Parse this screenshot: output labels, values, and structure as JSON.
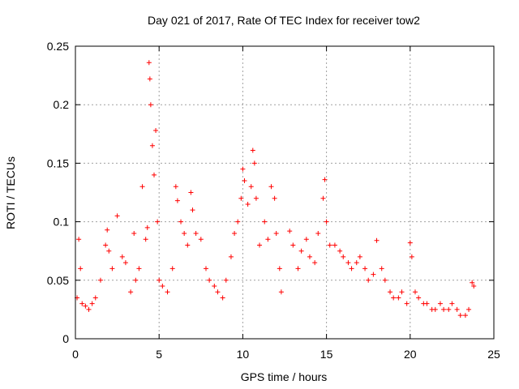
{
  "chart_data": {
    "type": "scatter",
    "title": "Day 021 of 2017, Rate Of TEC Index for receiver tow2",
    "xlabel": "GPS time / hours",
    "ylabel": "ROTI / TECUs",
    "xlim": [
      0,
      25
    ],
    "ylim": [
      0,
      0.25
    ],
    "xticks": [
      0,
      5,
      10,
      15,
      20,
      25
    ],
    "yticks": [
      0,
      0.05,
      0.1,
      0.15,
      0.2,
      0.25
    ],
    "xtick_labels": [
      "0",
      "5",
      "10",
      "15",
      "20",
      "25"
    ],
    "ytick_labels": [
      "0",
      "0.05",
      "0.1",
      "0.15",
      "0.2",
      "0.25"
    ],
    "grid": true,
    "marker": "plus",
    "color": "#ff0000",
    "x": [
      0.1,
      0.2,
      0.3,
      0.4,
      0.6,
      0.8,
      1.0,
      1.2,
      1.5,
      1.8,
      1.9,
      2.0,
      2.2,
      2.5,
      2.8,
      3.0,
      3.3,
      3.5,
      3.6,
      3.8,
      4.0,
      4.2,
      4.3,
      4.4,
      4.45,
      4.5,
      4.6,
      4.7,
      4.8,
      4.9,
      5.0,
      5.2,
      5.5,
      5.8,
      6.0,
      6.1,
      6.3,
      6.5,
      6.7,
      6.9,
      7.0,
      7.2,
      7.5,
      7.8,
      8.0,
      8.3,
      8.5,
      8.8,
      9.0,
      9.3,
      9.5,
      9.7,
      9.9,
      10.0,
      10.1,
      10.3,
      10.5,
      10.6,
      10.7,
      10.8,
      11.0,
      11.3,
      11.5,
      11.7,
      11.9,
      12.0,
      12.2,
      12.3,
      12.8,
      13.0,
      13.3,
      13.5,
      13.8,
      14.0,
      14.3,
      14.5,
      14.8,
      14.9,
      15.0,
      15.2,
      15.5,
      15.8,
      16.0,
      16.3,
      16.5,
      16.8,
      17.0,
      17.3,
      17.5,
      17.8,
      18.0,
      18.3,
      18.5,
      18.8,
      19.0,
      19.3,
      19.5,
      19.8,
      20.0,
      20.1,
      20.3,
      20.5,
      20.8,
      21.0,
      21.3,
      21.5,
      21.8,
      22.0,
      22.3,
      22.5,
      22.8,
      23.0,
      23.3,
      23.5,
      23.7,
      23.8
    ],
    "y": [
      0.035,
      0.085,
      0.06,
      0.03,
      0.028,
      0.025,
      0.03,
      0.035,
      0.05,
      0.08,
      0.093,
      0.075,
      0.06,
      0.105,
      0.07,
      0.065,
      0.04,
      0.09,
      0.05,
      0.06,
      0.13,
      0.085,
      0.095,
      0.236,
      0.222,
      0.2,
      0.165,
      0.14,
      0.178,
      0.1,
      0.05,
      0.045,
      0.04,
      0.06,
      0.13,
      0.118,
      0.1,
      0.09,
      0.08,
      0.125,
      0.11,
      0.09,
      0.085,
      0.06,
      0.05,
      0.045,
      0.04,
      0.035,
      0.05,
      0.07,
      0.09,
      0.1,
      0.12,
      0.145,
      0.135,
      0.115,
      0.13,
      0.161,
      0.15,
      0.12,
      0.08,
      0.1,
      0.085,
      0.13,
      0.12,
      0.09,
      0.06,
      0.04,
      0.092,
      0.08,
      0.06,
      0.075,
      0.085,
      0.07,
      0.065,
      0.09,
      0.12,
      0.136,
      0.1,
      0.08,
      0.08,
      0.075,
      0.07,
      0.065,
      0.06,
      0.065,
      0.07,
      0.06,
      0.05,
      0.055,
      0.084,
      0.06,
      0.05,
      0.04,
      0.035,
      0.035,
      0.04,
      0.03,
      0.082,
      0.07,
      0.04,
      0.035,
      0.03,
      0.03,
      0.025,
      0.025,
      0.03,
      0.025,
      0.025,
      0.03,
      0.025,
      0.02,
      0.02,
      0.025,
      0.048,
      0.045
    ]
  }
}
